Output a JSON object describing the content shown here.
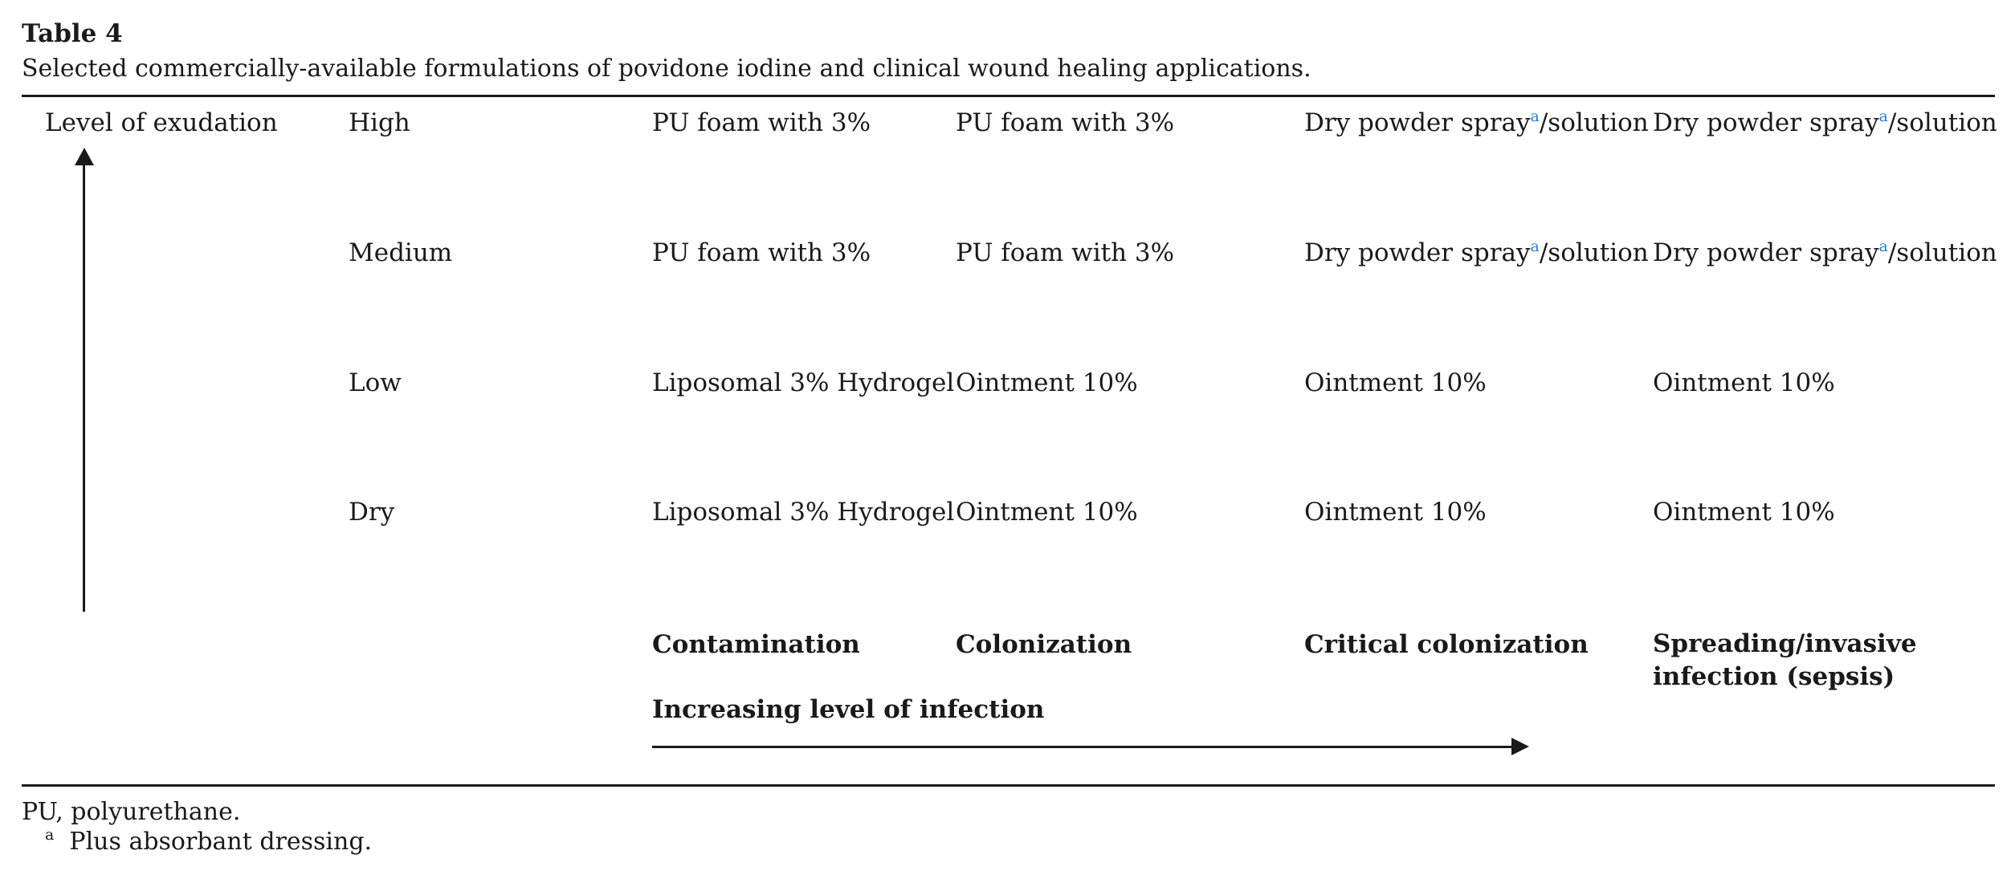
{
  "caption": {
    "title": "Table 4",
    "text": "Selected commercially-available formulations of povidone iodine and clinical wound healing applications."
  },
  "table": {
    "y_axis_label": "Level of exudation",
    "rows": [
      {
        "level": "High",
        "cells": [
          {
            "text": "PU foam with 3%"
          },
          {
            "text": "PU foam with 3%"
          },
          {
            "text": "Dry powder spray",
            "mark": "a",
            "after": "/solution"
          },
          {
            "text": "Dry powder spray",
            "mark": "a",
            "after": "/solution"
          }
        ]
      },
      {
        "level": "Medium",
        "cells": [
          {
            "text": "PU foam with 3%"
          },
          {
            "text": "PU foam with 3%"
          },
          {
            "text": "Dry powder spray",
            "mark": "a",
            "after": "/solution"
          },
          {
            "text": "Dry powder spray",
            "mark": "a",
            "after": "/solution"
          }
        ]
      },
      {
        "level": "Low",
        "cells": [
          {
            "text": "Liposomal 3% Hydrogel"
          },
          {
            "text": "Ointment 10%"
          },
          {
            "text": "Ointment 10%"
          },
          {
            "text": "Ointment 10%"
          }
        ]
      },
      {
        "level": "Dry",
        "cells": [
          {
            "text": "Liposomal 3% Hydrogel"
          },
          {
            "text": "Ointment 10%"
          },
          {
            "text": "Ointment 10%"
          },
          {
            "text": "Ointment 10%"
          }
        ]
      }
    ],
    "infection_stages": [
      "Contamination",
      "Colonization",
      "Critical colonization",
      "Spreading/invasive infection (sepsis)"
    ],
    "x_axis_label": "Increasing level of infection"
  },
  "footnotes": {
    "abbreviation": "PU, polyurethane.",
    "a_mark": "a",
    "a_text": "Plus absorbant dressing."
  }
}
